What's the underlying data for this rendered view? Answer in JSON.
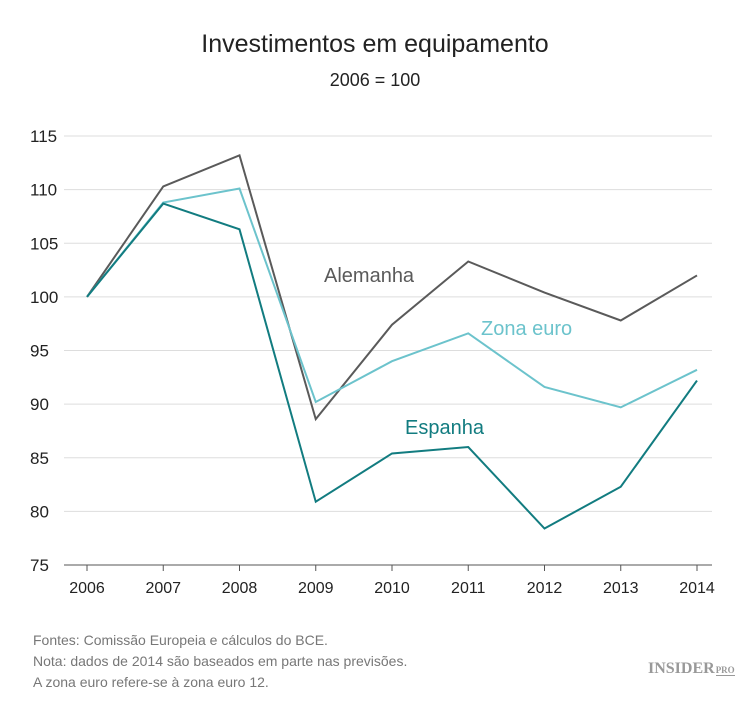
{
  "chart_data": {
    "type": "line",
    "title": "Investimentos em equipamento",
    "subtitle": "2006 = 100",
    "x": [
      "2006",
      "2007",
      "2008",
      "2009",
      "2010",
      "2011",
      "2012",
      "2013",
      "2014"
    ],
    "ylim": [
      75,
      115
    ],
    "yticks": [
      75,
      80,
      85,
      90,
      95,
      100,
      105,
      110,
      115
    ],
    "grid": true,
    "series": [
      {
        "name": "Alemanha",
        "color": "#5a5a5a",
        "values": [
          100,
          110.3,
          113.2,
          88.6,
          97.4,
          103.3,
          100.4,
          97.8,
          102.0
        ]
      },
      {
        "name": "Zona euro",
        "color": "#6cc3cc",
        "values": [
          100,
          108.8,
          110.1,
          90.2,
          94.0,
          96.6,
          91.6,
          89.7,
          93.2
        ]
      },
      {
        "name": "Espanha",
        "color": "#127c80",
        "values": [
          100,
          108.7,
          106.3,
          80.9,
          85.4,
          86.0,
          78.4,
          82.3,
          92.2
        ]
      }
    ]
  },
  "notes": [
    "Fontes: Comissão Europeia e cálculos do BCE.",
    "Nota: dados de 2014 são baseados em parte nas previsões.",
    "A zona euro refere-se à zona euro 12."
  ],
  "logo": {
    "main": "INSIDER",
    "sub": "PRO"
  }
}
